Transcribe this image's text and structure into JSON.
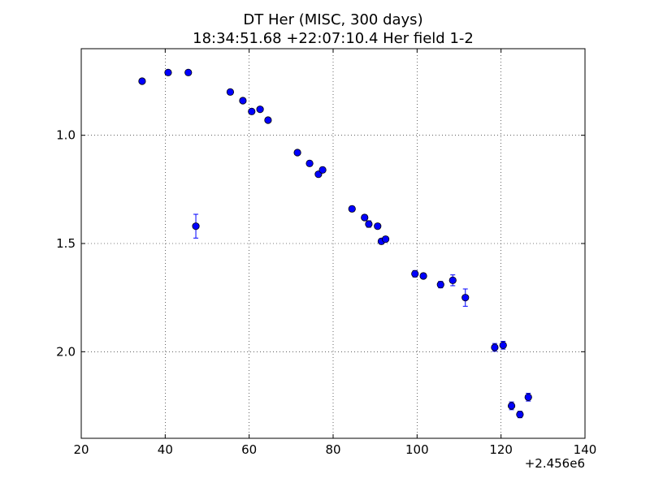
{
  "chart_data": {
    "type": "scatter",
    "title": "DT Her (MISC, 300 days)",
    "subtitle": "18:34:51.68 +22:07:10.4 Her field 1-2",
    "xlabel": "",
    "ylabel": "",
    "x_offset_label": "+2.456e6",
    "xlim": [
      20,
      140
    ],
    "ylim": [
      2.4,
      0.6
    ],
    "y_inverted": true,
    "grid": true,
    "x_ticks": [
      "20",
      "40",
      "60",
      "80",
      "100",
      "120",
      "140"
    ],
    "y_ticks": [
      "1.0",
      "1.5",
      "2.0"
    ],
    "marker_color": "#0000ff",
    "series": [
      {
        "points": [
          {
            "x": 34.5,
            "y": 0.75,
            "err": 0.01
          },
          {
            "x": 40.7,
            "y": 0.71,
            "err": 0.01
          },
          {
            "x": 45.5,
            "y": 0.71,
            "err": 0.01
          },
          {
            "x": 47.3,
            "y": 1.42,
            "err": 0.055
          },
          {
            "x": 55.5,
            "y": 0.8,
            "err": 0.01
          },
          {
            "x": 58.5,
            "y": 0.84,
            "err": 0.01
          },
          {
            "x": 60.6,
            "y": 0.89,
            "err": 0.01
          },
          {
            "x": 62.6,
            "y": 0.88,
            "err": 0.01
          },
          {
            "x": 64.5,
            "y": 0.93,
            "err": 0.01
          },
          {
            "x": 71.5,
            "y": 1.08,
            "err": 0.01
          },
          {
            "x": 74.4,
            "y": 1.13,
            "err": 0.012
          },
          {
            "x": 76.5,
            "y": 1.18,
            "err": 0.012
          },
          {
            "x": 77.5,
            "y": 1.16,
            "err": 0.012
          },
          {
            "x": 84.5,
            "y": 1.34,
            "err": 0.012
          },
          {
            "x": 87.5,
            "y": 1.38,
            "err": 0.012
          },
          {
            "x": 88.5,
            "y": 1.41,
            "err": 0.015
          },
          {
            "x": 90.6,
            "y": 1.42,
            "err": 0.012
          },
          {
            "x": 91.5,
            "y": 1.49,
            "err": 0.012
          },
          {
            "x": 92.5,
            "y": 1.48,
            "err": 0.012
          },
          {
            "x": 99.5,
            "y": 1.64,
            "err": 0.015
          },
          {
            "x": 101.5,
            "y": 1.65,
            "err": 0.012
          },
          {
            "x": 105.6,
            "y": 1.69,
            "err": 0.015
          },
          {
            "x": 108.5,
            "y": 1.67,
            "err": 0.025
          },
          {
            "x": 111.5,
            "y": 1.75,
            "err": 0.04
          },
          {
            "x": 118.5,
            "y": 1.98,
            "err": 0.018
          },
          {
            "x": 120.5,
            "y": 1.97,
            "err": 0.018
          },
          {
            "x": 122.5,
            "y": 2.25,
            "err": 0.018
          },
          {
            "x": 124.5,
            "y": 2.29,
            "err": 0.015
          },
          {
            "x": 126.5,
            "y": 2.21,
            "err": 0.018
          }
        ]
      }
    ]
  }
}
